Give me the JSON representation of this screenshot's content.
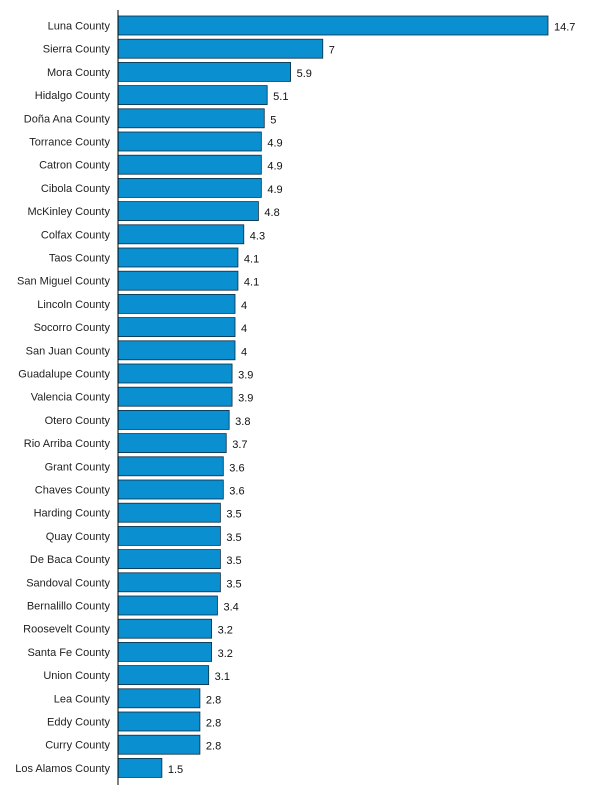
{
  "chart_data": {
    "type": "bar",
    "orientation": "horizontal",
    "title": "",
    "xlabel": "",
    "ylabel": "",
    "grid": false,
    "legend": "none",
    "xlim": [
      0,
      14.7
    ],
    "bar_color": "#0a8fd1",
    "bar_edge_color": "#0b2d44",
    "categories": [
      "Luna County",
      "Sierra County",
      "Mora County",
      "Hidalgo County",
      "Doña Ana County",
      "Torrance County",
      "Catron County",
      "Cibola County",
      "McKinley County",
      "Colfax County",
      "Taos County",
      "San Miguel County",
      "Lincoln County",
      "Socorro County",
      "San Juan County",
      "Guadalupe County",
      "Valencia County",
      "Otero County",
      "Rio Arriba County",
      "Grant County",
      "Chaves County",
      "Harding County",
      "Quay County",
      "De Baca County",
      "Sandoval County",
      "Bernalillo County",
      "Roosevelt County",
      "Santa Fe County",
      "Union County",
      "Lea County",
      "Eddy County",
      "Curry County",
      "Los Alamos County"
    ],
    "values": [
      14.7,
      7,
      5.9,
      5.1,
      5,
      4.9,
      4.9,
      4.9,
      4.8,
      4.3,
      4.1,
      4.1,
      4,
      4,
      4,
      3.9,
      3.9,
      3.8,
      3.7,
      3.6,
      3.6,
      3.5,
      3.5,
      3.5,
      3.5,
      3.4,
      3.2,
      3.2,
      3.1,
      2.8,
      2.8,
      2.8,
      1.5
    ],
    "value_labels": [
      "14.7",
      "7",
      "5.9",
      "5.1",
      "5",
      "4.9",
      "4.9",
      "4.9",
      "4.8",
      "4.3",
      "4.1",
      "4.1",
      "4",
      "4",
      "4",
      "3.9",
      "3.9",
      "3.8",
      "3.7",
      "3.6",
      "3.6",
      "3.5",
      "3.5",
      "3.5",
      "3.5",
      "3.4",
      "3.2",
      "3.2",
      "3.1",
      "2.8",
      "2.8",
      "2.8",
      "1.5"
    ]
  }
}
